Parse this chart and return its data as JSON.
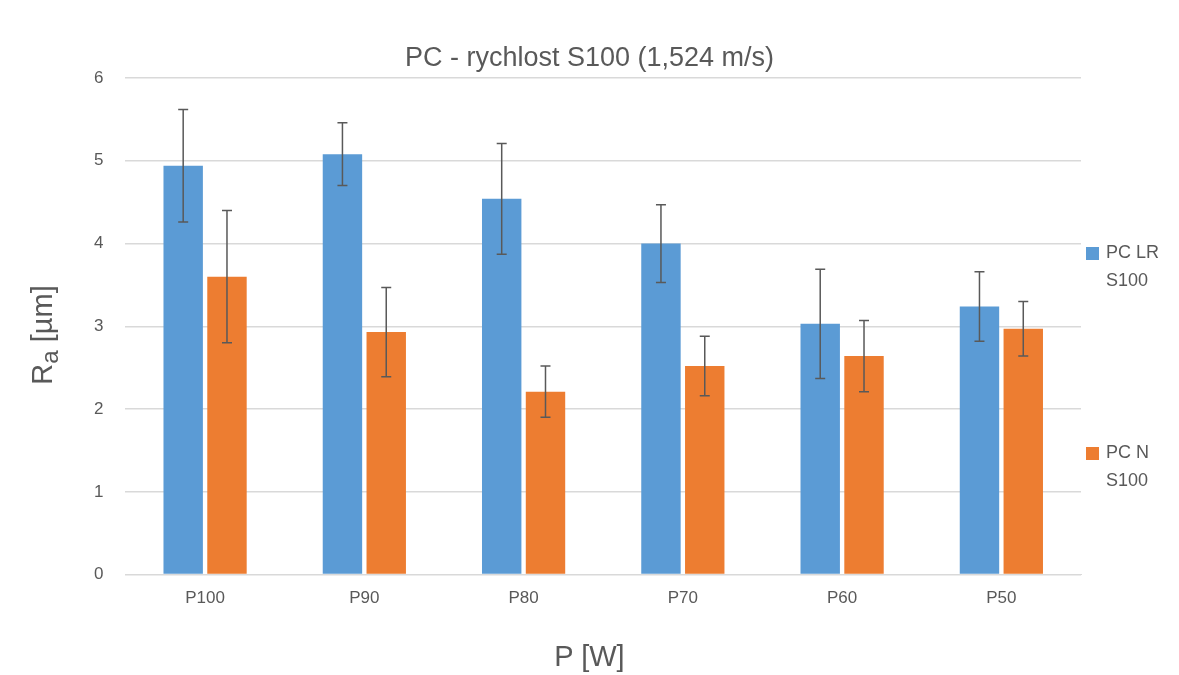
{
  "chart_data": {
    "type": "bar",
    "title": "PC - rychlost S100 (1,524 m/s)",
    "xlabel": "P [W]",
    "ylabel": "R$_{a}$ [µm]",
    "categories": [
      "P100",
      "P90",
      "P80",
      "P70",
      "P60",
      "P50"
    ],
    "series": [
      {
        "name": "PC LR S100",
        "color": "#5b9bd5",
        "values": [
          4.94,
          5.08,
          4.54,
          4.0,
          3.03,
          3.24
        ],
        "errors": [
          0.68,
          0.38,
          0.67,
          0.47,
          0.66,
          0.42
        ]
      },
      {
        "name": "PC N S100",
        "color": "#ed7d31",
        "values": [
          3.6,
          2.93,
          2.21,
          2.52,
          2.64,
          2.97
        ],
        "errors": [
          0.8,
          0.54,
          0.31,
          0.36,
          0.43,
          0.33
        ]
      }
    ],
    "ylim": [
      0,
      6
    ],
    "yticks": [
      0,
      1,
      2,
      3,
      4,
      5,
      6
    ],
    "grid": "y",
    "legend": "right"
  }
}
